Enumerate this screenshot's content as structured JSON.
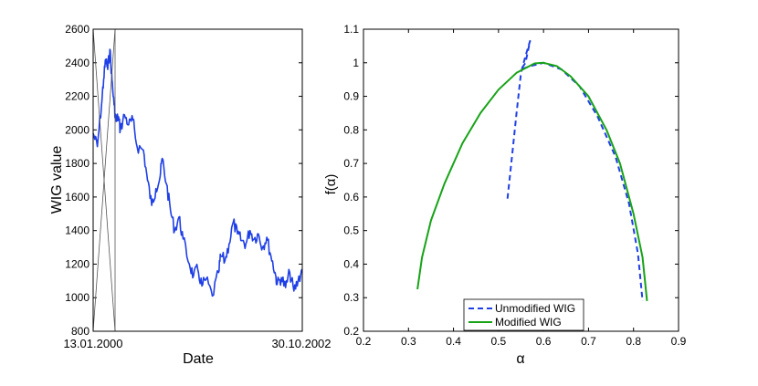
{
  "chart_data": [
    {
      "type": "line",
      "xlabel": "Date",
      "ylabel": "WIG value",
      "ylim": [
        800,
        2600
      ],
      "yticks": [
        800,
        1000,
        1200,
        1400,
        1600,
        1800,
        2000,
        2200,
        2400,
        2600
      ],
      "x_tick_labels": [
        "13.01.2000",
        "30.10.2002"
      ],
      "series": [
        {
          "name": "WIG value",
          "color": "#1f3fe6",
          "x": [
            0,
            0.02,
            0.04,
            0.05,
            0.06,
            0.07,
            0.08,
            0.09,
            0.1,
            0.11,
            0.12,
            0.13,
            0.15,
            0.17,
            0.19,
            0.21,
            0.24,
            0.26,
            0.28,
            0.3,
            0.32,
            0.33,
            0.35,
            0.37,
            0.39,
            0.41,
            0.43,
            0.46,
            0.48,
            0.5,
            0.52,
            0.54,
            0.57,
            0.6,
            0.61,
            0.63,
            0.65,
            0.67,
            0.69,
            0.71,
            0.73,
            0.75,
            0.77,
            0.79,
            0.81,
            0.83,
            0.85,
            0.87,
            0.88,
            0.9,
            0.92,
            0.94,
            0.96,
            0.98,
            1.0
          ],
          "values": [
            1980,
            1900,
            2150,
            2300,
            2420,
            2360,
            2480,
            2300,
            2150,
            2050,
            2080,
            2000,
            2090,
            2030,
            2060,
            1900,
            1880,
            1700,
            1550,
            1650,
            1720,
            1830,
            1680,
            1520,
            1400,
            1480,
            1350,
            1200,
            1130,
            1170,
            1070,
            1110,
            1010,
            1150,
            1250,
            1220,
            1320,
            1450,
            1380,
            1340,
            1320,
            1400,
            1350,
            1380,
            1300,
            1360,
            1250,
            1150,
            1080,
            1120,
            1060,
            1150,
            1040,
            1100,
            1170
          ]
        }
      ]
    },
    {
      "type": "line",
      "xlabel": "α",
      "ylabel": "f(α)",
      "xlim": [
        0.2,
        0.9
      ],
      "ylim": [
        0.2,
        1.1
      ],
      "xticks": [
        0.2,
        0.3,
        0.4,
        0.5,
        0.6,
        0.7,
        0.8,
        0.9
      ],
      "yticks": [
        0.2,
        0.3,
        0.4,
        0.5,
        0.6,
        0.7,
        0.8,
        0.9,
        1,
        1.1
      ],
      "legend_position": "bottom-center",
      "series": [
        {
          "name": "Unmodified WIG",
          "color": "#1f3fe6",
          "dash": true,
          "points": [
            [
              0.52,
              0.595
            ],
            [
              0.53,
              0.72
            ],
            [
              0.54,
              0.85
            ],
            [
              0.55,
              0.97
            ],
            [
              0.56,
              1.02
            ],
            [
              0.57,
              1.065
            ],
            [
              0.57,
              1.065
            ],
            [
              0.56,
              1.0
            ],
            [
              0.55,
              0.98
            ],
            [
              0.57,
              0.99
            ],
            [
              0.6,
              1.0
            ],
            [
              0.64,
              0.98
            ],
            [
              0.68,
              0.93
            ],
            [
              0.72,
              0.84
            ],
            [
              0.76,
              0.72
            ],
            [
              0.79,
              0.58
            ],
            [
              0.81,
              0.43
            ],
            [
              0.82,
              0.29
            ]
          ]
        },
        {
          "name": "Modified WIG",
          "color": "#17a317",
          "dash": false,
          "points": [
            [
              0.32,
              0.325
            ],
            [
              0.33,
              0.42
            ],
            [
              0.35,
              0.53
            ],
            [
              0.38,
              0.64
            ],
            [
              0.42,
              0.76
            ],
            [
              0.46,
              0.85
            ],
            [
              0.5,
              0.92
            ],
            [
              0.54,
              0.97
            ],
            [
              0.58,
              0.998
            ],
            [
              0.6,
              1.0
            ],
            [
              0.63,
              0.99
            ],
            [
              0.66,
              0.96
            ],
            [
              0.7,
              0.9
            ],
            [
              0.74,
              0.8
            ],
            [
              0.77,
              0.7
            ],
            [
              0.8,
              0.55
            ],
            [
              0.82,
              0.42
            ],
            [
              0.83,
              0.29
            ]
          ]
        }
      ]
    }
  ]
}
